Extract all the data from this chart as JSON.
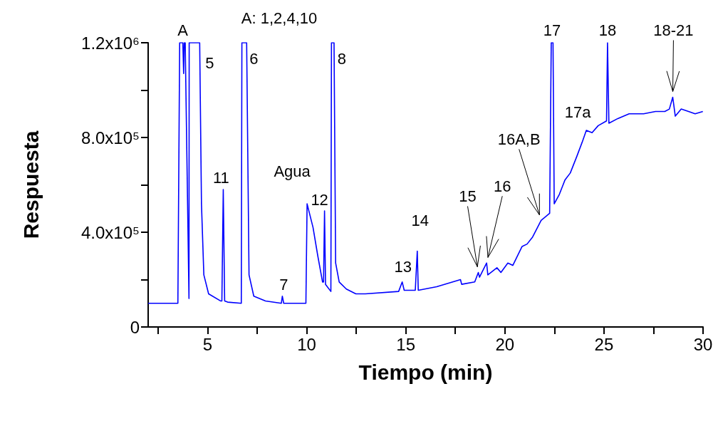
{
  "chart_data": {
    "type": "line",
    "xlabel": "Tiempo (min)",
    "ylabel": "Respuesta",
    "xlim": [
      2,
      30
    ],
    "ylim": [
      0,
      1200000
    ],
    "xticks": [
      {
        "value": 2.5,
        "label": null
      },
      5,
      {
        "value": 7.5,
        "label": null
      },
      10,
      {
        "value": 12.5,
        "label": null
      },
      15,
      {
        "value": 17.5,
        "label": null
      },
      20,
      {
        "value": 22.5,
        "label": null
      },
      25,
      {
        "value": 27.5,
        "label": null
      },
      30
    ],
    "yticks": [
      {
        "value": 0,
        "label": "0"
      },
      {
        "value": 200000,
        "label": null
      },
      {
        "value": 400000,
        "label": "4.0x10⁵"
      },
      {
        "value": 600000,
        "label": null
      },
      {
        "value": 800000,
        "label": "8.0x10⁵"
      },
      {
        "value": 1000000,
        "label": null
      },
      {
        "value": 1200000,
        "label": "1.2x10⁶"
      }
    ],
    "marker": "none",
    "line_style": "solid",
    "series": [
      {
        "color": "#0000ff",
        "x": [
          2,
          3.5,
          3.59,
          3.75,
          3.79,
          3.82,
          3.87,
          4.06,
          4.07,
          4.6,
          4.69,
          4.81,
          5.05,
          5.65,
          5.72,
          5.79,
          5.86,
          6.01,
          6.7,
          6.73,
          6.97,
          7.09,
          7.33,
          7.92,
          8.72,
          8.77,
          8.84,
          9.96,
          10.02,
          10.32,
          10.56,
          10.8,
          10.85,
          10.9,
          10.95,
          11.22,
          11.25,
          11.38,
          11.46,
          11.64,
          12,
          12.48,
          12.96,
          14.64,
          14.82,
          14.92,
          15.48,
          15.58,
          15.63,
          16.56,
          17.76,
          17.82,
          18.48,
          18.66,
          18.72,
          19.08,
          19.14,
          19.6,
          19.8,
          20.15,
          20.4,
          20.87,
          21.12,
          21.4,
          21.83,
          22.26,
          22.34,
          22.43,
          22.49,
          22.75,
          23.03,
          23.3,
          23.63,
          23.9,
          24.11,
          24.4,
          24.71,
          25.13,
          25.18,
          25.25,
          25.7,
          26.27,
          27,
          27.6,
          28.07,
          28.3,
          28.47,
          28.6,
          28.9,
          29.27,
          29.6,
          29.99
        ],
        "values": [
          100000,
          100000,
          1200000,
          1200000,
          1070000,
          1200000,
          1200000,
          120000,
          1200000,
          1200000,
          520000,
          220000,
          140000,
          110000,
          110000,
          580000,
          110000,
          105000,
          100000,
          1200000,
          1200000,
          220000,
          130000,
          110000,
          100000,
          130000,
          100000,
          100000,
          520000,
          420000,
          300000,
          190000,
          190000,
          490000,
          180000,
          150000,
          1200000,
          1200000,
          270000,
          190000,
          160000,
          140000,
          140000,
          150000,
          190000,
          155000,
          155000,
          320000,
          155000,
          170000,
          200000,
          180000,
          190000,
          230000,
          210000,
          270000,
          220000,
          250000,
          230000,
          270000,
          260000,
          340000,
          350000,
          380000,
          450000,
          480000,
          1200000,
          1200000,
          520000,
          560000,
          620000,
          650000,
          720000,
          780000,
          830000,
          820000,
          850000,
          870000,
          1200000,
          860000,
          880000,
          900000,
          900000,
          910000,
          910000,
          920000,
          970000,
          890000,
          920000,
          910000,
          900000,
          910000
        ]
      }
    ],
    "annotations": [
      {
        "text": "A",
        "x": 3.75,
        "y": 1200000
      },
      "A: 1,2,4,10",
      {
        "text": "5",
        "x": 4.6,
        "y": 1200000
      },
      {
        "text": "6",
        "x": 6.97,
        "y": 1200000
      },
      {
        "text": "11",
        "x": 5.79,
        "y": 580000
      },
      {
        "text": "7",
        "x": 8.77,
        "y": 130000
      },
      {
        "text": "Agua",
        "x": 10.02,
        "y": 520000
      },
      {
        "text": "12",
        "x": 10.9,
        "y": 490000
      },
      {
        "text": "8",
        "x": 11.38,
        "y": 1200000
      },
      {
        "text": "13",
        "x": 14.82,
        "y": 190000
      },
      {
        "text": "14",
        "x": 15.58,
        "y": 320000
      },
      {
        "text": "15",
        "x": 18.66,
        "y": 230000
      },
      {
        "text": "16",
        "x": 19.08,
        "y": 270000
      },
      {
        "text": "16A,B",
        "x": 21.83,
        "y": 450000
      },
      {
        "text": "17",
        "x": 22.38,
        "y": 1200000
      },
      {
        "text": "17a",
        "x": 24.11,
        "y": 830000
      },
      {
        "text": "18",
        "x": 25.18,
        "y": 1200000
      },
      {
        "text": "18-21",
        "x": 28.47,
        "y": 970000
      }
    ]
  }
}
